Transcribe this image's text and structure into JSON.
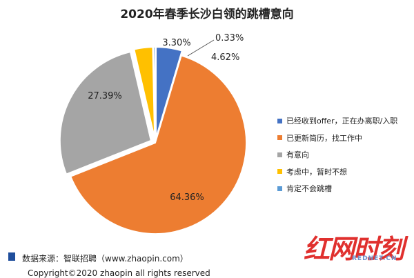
{
  "colors": {
    "series": [
      "#4472C4",
      "#ED7D31",
      "#A5A5A5",
      "#FFC000",
      "#5B9BD5"
    ],
    "footer_bar": "#1f4e9c",
    "watermark_red": "#e0302e",
    "watermark_blue": "#6d8fc9"
  },
  "chart_data": {
    "type": "pie",
    "title": "2020年春季长沙白领的跳槽意向",
    "categories": [
      "已经收到offer，正在办离职/入职",
      "已更新简历，找工作中",
      "有意向",
      "考虑中，暂时不想",
      "肯定不会跳槽"
    ],
    "values": [
      4.62,
      64.36,
      27.39,
      3.3,
      0.33
    ],
    "data_labels": [
      "4.62%",
      "64.36%",
      "27.39%",
      "3.30%",
      "0.33%"
    ],
    "legend_position": "right"
  },
  "footer": {
    "source": "数据来源：智联招聘（www.zhaopin.com）",
    "copyright": "Copyright©2020 zhaopin all rights reserved"
  },
  "watermark": {
    "logo": "红网时刻",
    "sub": "REDNET.CN"
  }
}
